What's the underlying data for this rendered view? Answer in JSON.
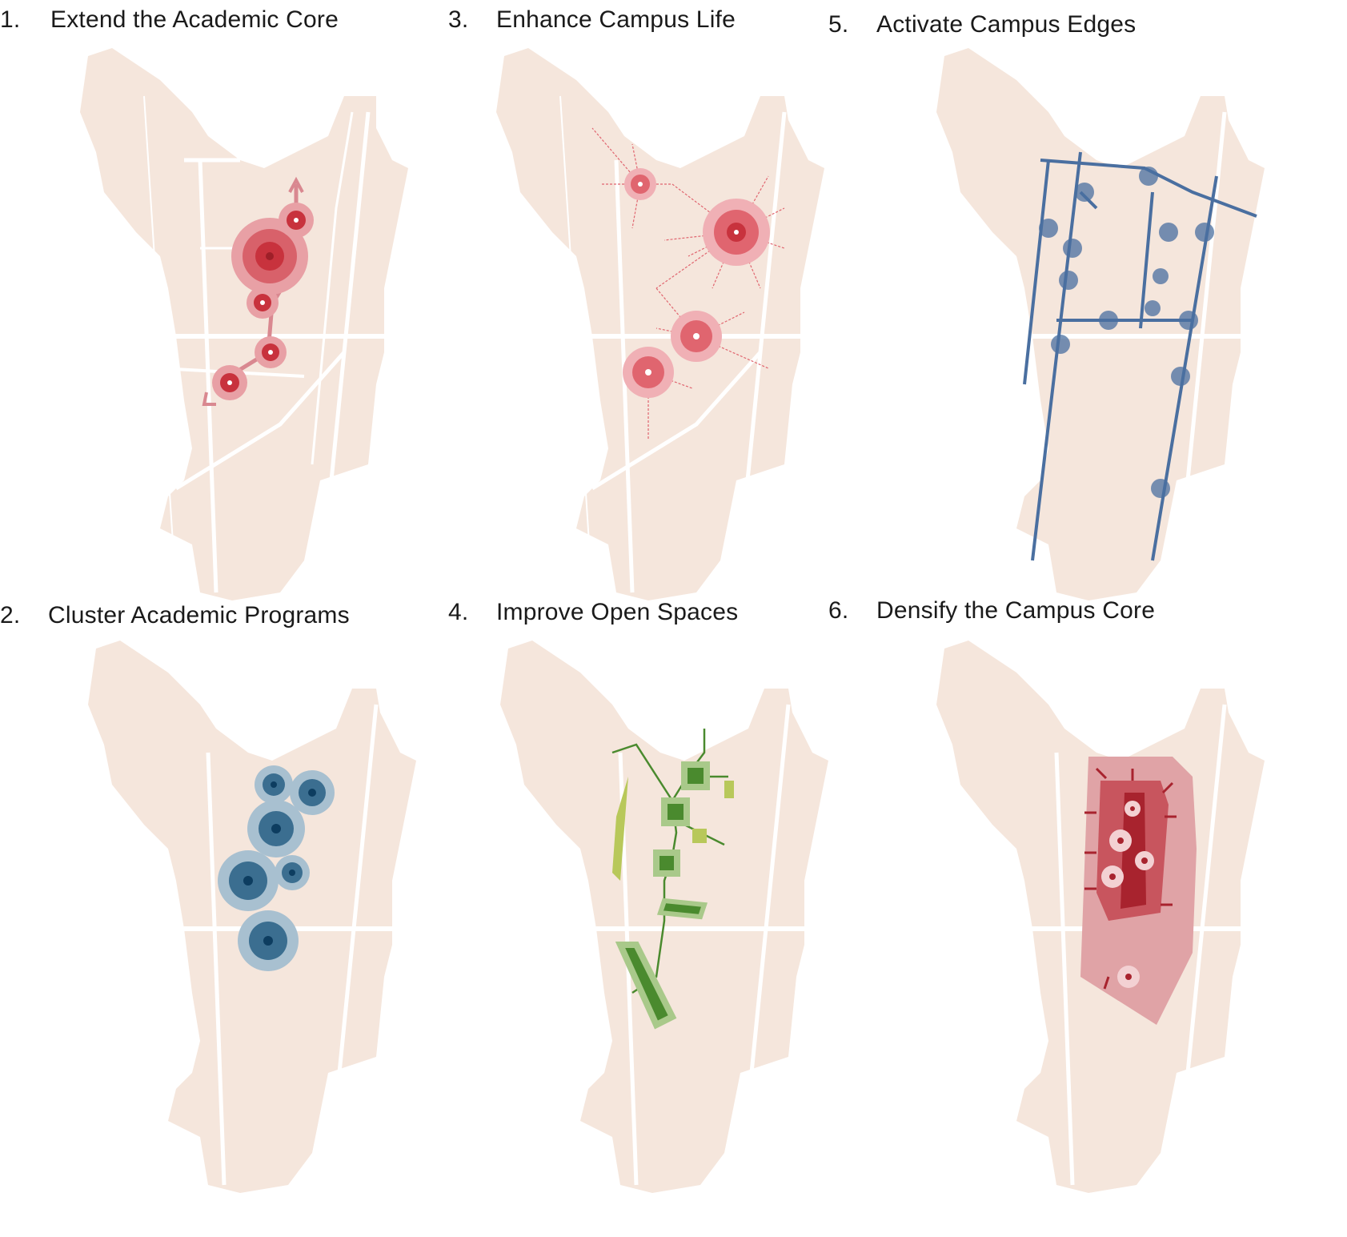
{
  "panels": [
    {
      "number": "1.",
      "title": "Extend the Academic Core",
      "theme": "red",
      "accent": "#c8323d"
    },
    {
      "number": "3.",
      "title": "Enhance Campus Life",
      "theme": "pink",
      "accent": "#e0656f"
    },
    {
      "number": "5.",
      "title": "Activate Campus Edges",
      "theme": "blue",
      "accent": "#4a6fa0"
    },
    {
      "number": "2.",
      "title": "Cluster Academic Programs",
      "theme": "teal",
      "accent": "#3b6e90"
    },
    {
      "number": "4.",
      "title": "Improve Open Spaces",
      "theme": "green",
      "accent": "#4a8a2e"
    },
    {
      "number": "6.",
      "title": "Densify the Campus Core",
      "theme": "darkred",
      "accent": "#a8232e"
    }
  ],
  "colors": {
    "campus": "#f5e6dc",
    "street": "#ffffff",
    "red": "#c8323d",
    "pink": "#e0656f",
    "blue": "#4a6fa0",
    "teal": "#3b6e90",
    "green": "#4a8a2e",
    "lime": "#b8c85a",
    "darkred": "#a8232e"
  }
}
